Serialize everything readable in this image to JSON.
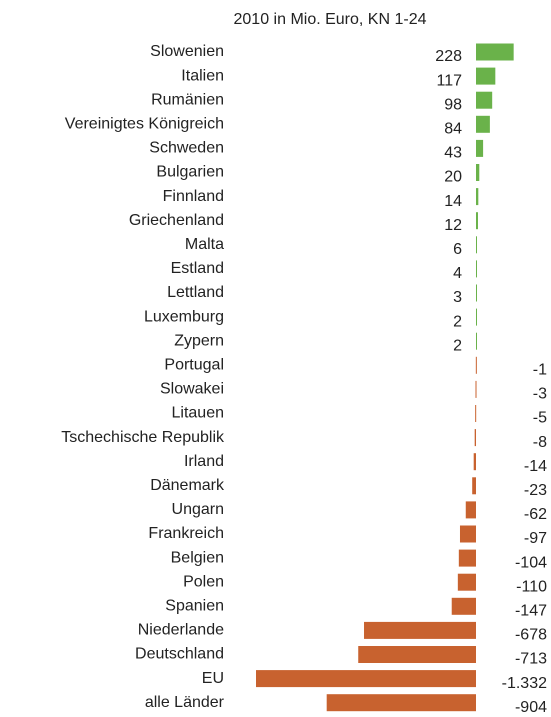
{
  "chart_data": {
    "type": "bar",
    "orientation": "horizontal",
    "title": "2010 in Mio. Euro, KN 1-24",
    "categories": [
      "Slowenien",
      "Italien",
      "Rumänien",
      "Vereinigtes Königreich",
      "Schweden",
      "Bulgarien",
      "Finnland",
      "Griechenland",
      "Malta",
      "Estland",
      "Lettland",
      "Luxemburg",
      "Zypern",
      "Portugal",
      "Slowakei",
      "Litauen",
      "Tschechische Republik",
      "Irland",
      "Dänemark",
      "Ungarn",
      "Frankreich",
      "Belgien",
      "Polen",
      "Spanien",
      "Niederlande",
      "Deutschland",
      "EU",
      "alle Länder"
    ],
    "values": [
      228,
      117,
      98,
      84,
      43,
      20,
      14,
      12,
      6,
      4,
      3,
      2,
      2,
      -1,
      -3,
      -5,
      -8,
      -14,
      -23,
      -62,
      -97,
      -104,
      -110,
      -147,
      -678,
      -713,
      -1332,
      -904
    ],
    "value_labels": [
      "228",
      "117",
      "98",
      "84",
      "43",
      "20",
      "14",
      "12",
      "6",
      "4",
      "3",
      "2",
      "2",
      "-1",
      "-3",
      "-5",
      "-8",
      "-14",
      "-23",
      "-62",
      "-97",
      "-104",
      "-110",
      "-147",
      "-678",
      "-713",
      "-1.332",
      "-904"
    ],
    "positive_color": "#6ab24a",
    "negative_color": "#c8622f"
  }
}
